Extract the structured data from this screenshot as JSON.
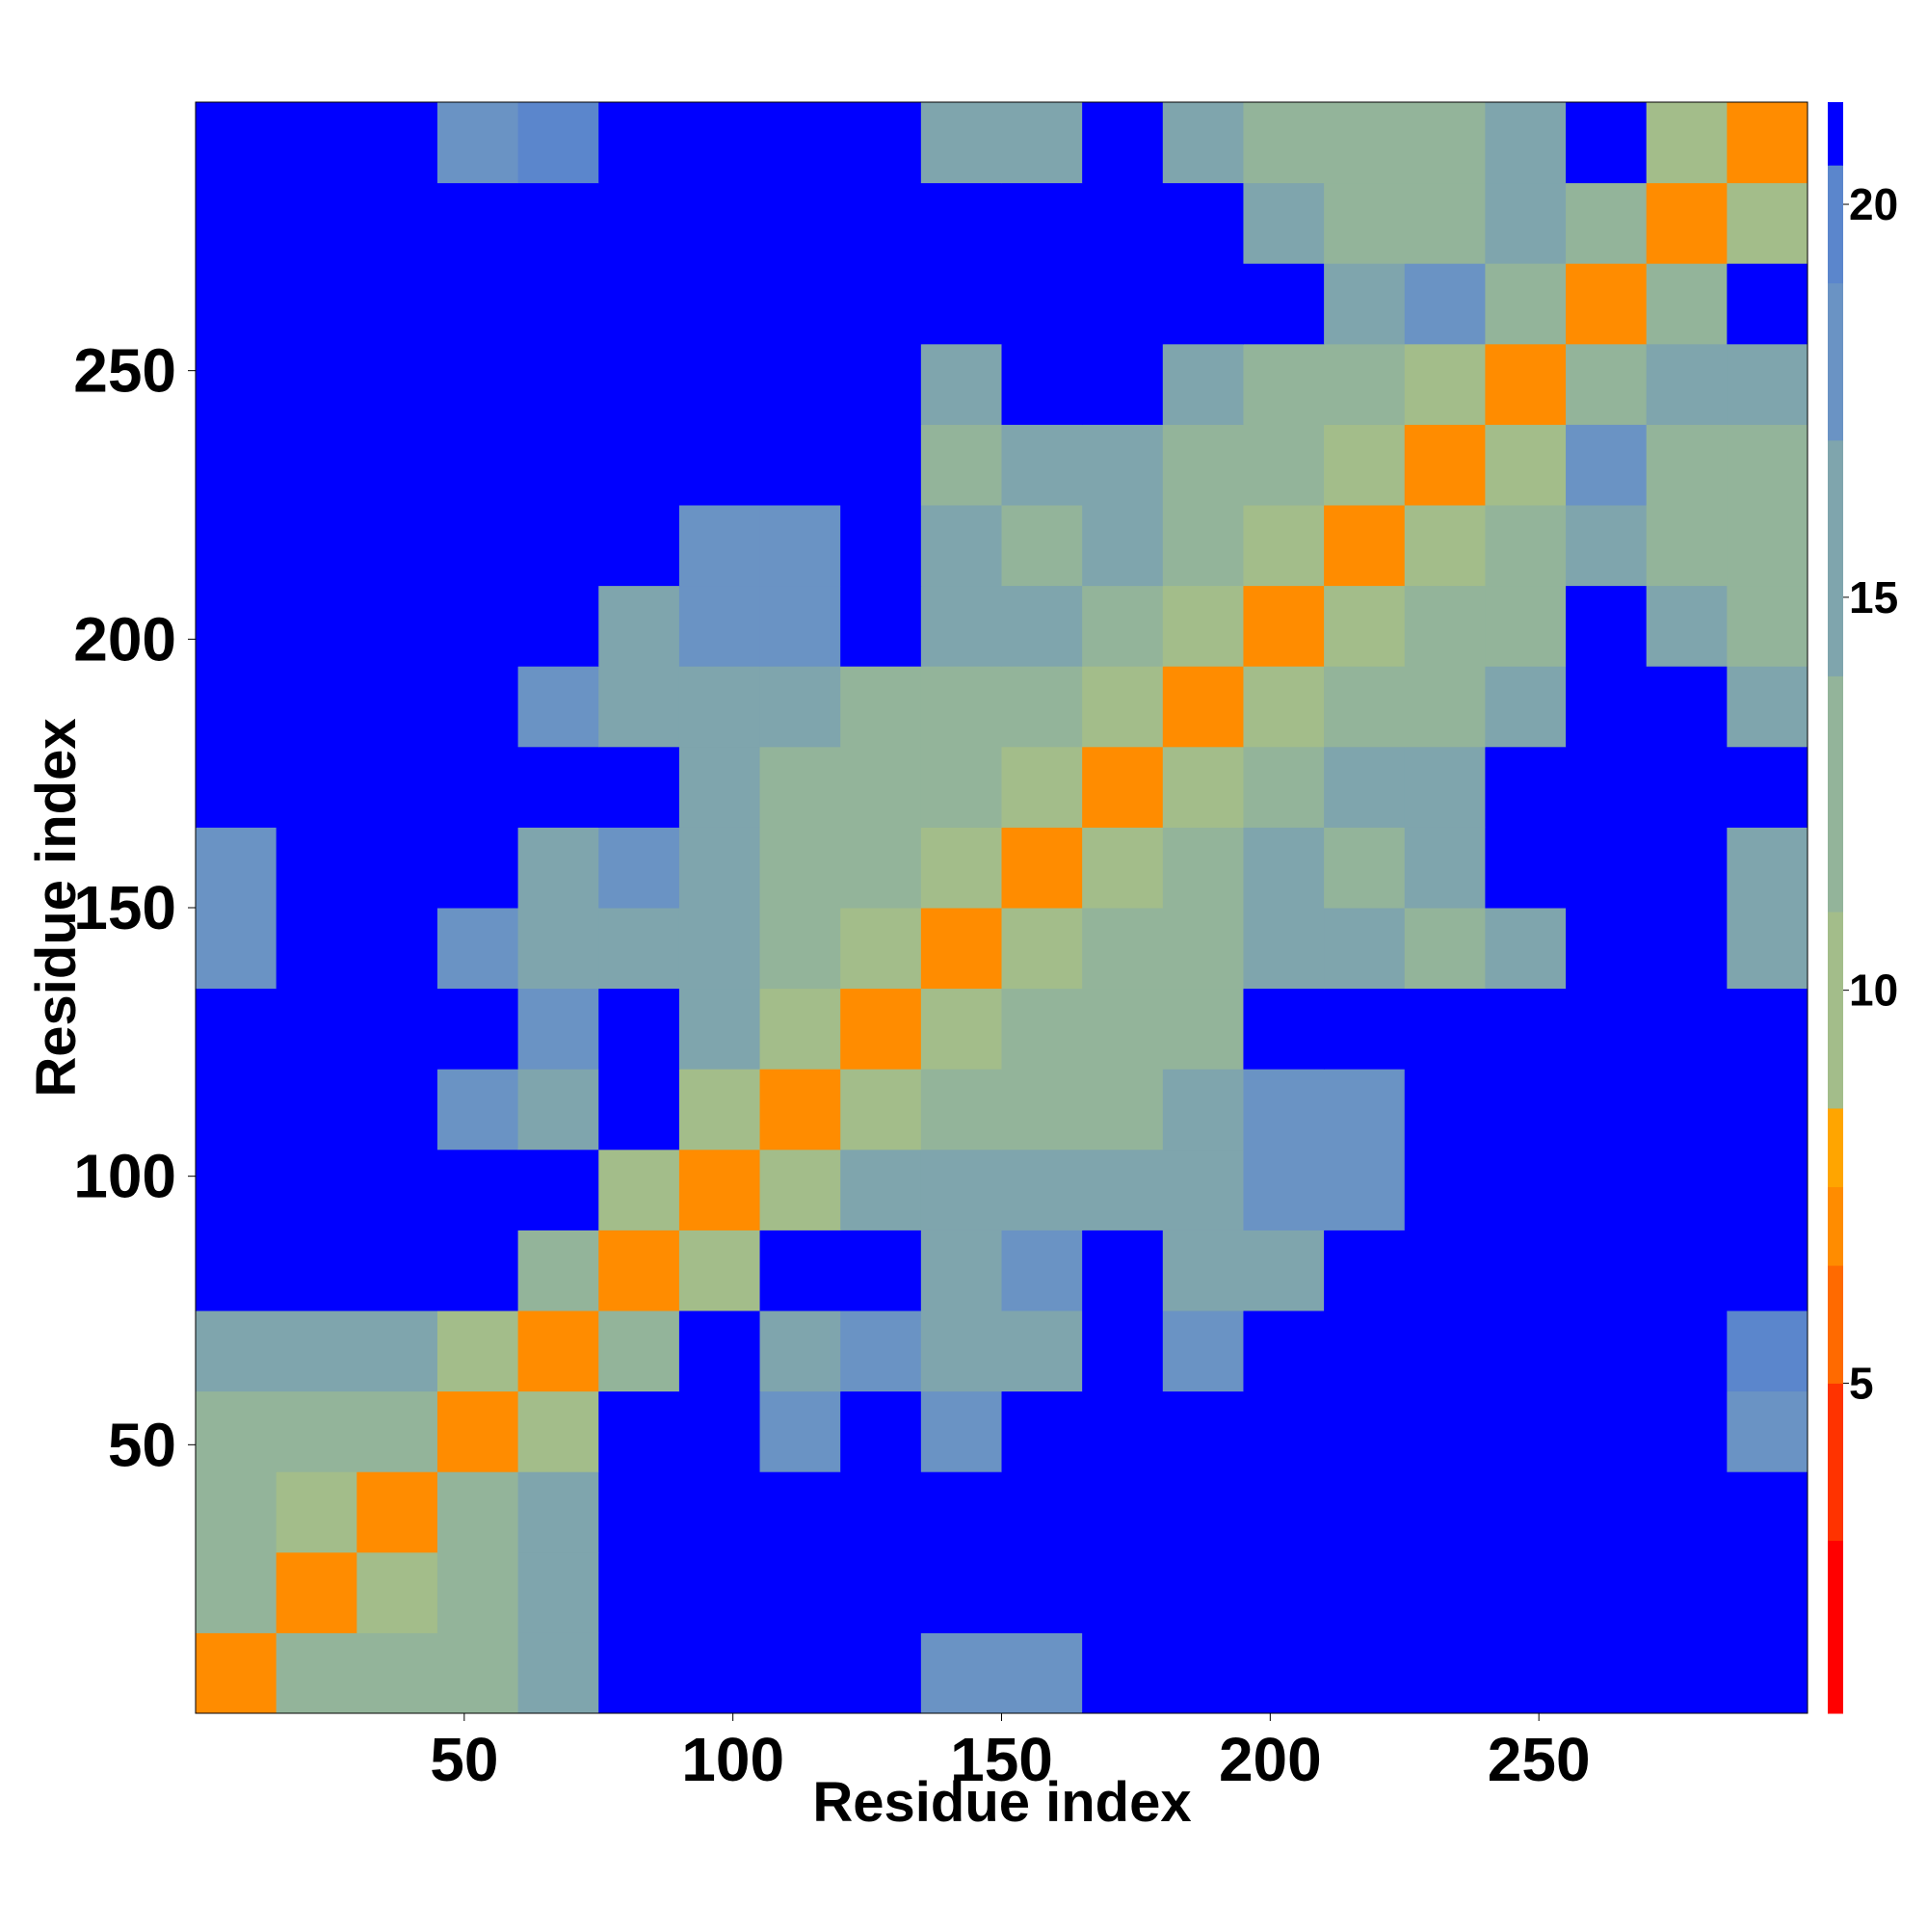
{
  "chart_data": {
    "type": "heatmap",
    "xlabel": "Residue index",
    "ylabel": "Residue index",
    "xlim": [
      0,
      300
    ],
    "ylim": [
      0,
      300
    ],
    "xticks": [
      50,
      100,
      150,
      200,
      250
    ],
    "yticks": [
      50,
      100,
      150,
      200,
      250
    ],
    "xbins": [
      0,
      15,
      30,
      45,
      60,
      75,
      90,
      105,
      120,
      135,
      150,
      165,
      180,
      195,
      210,
      225,
      240,
      255,
      270,
      285,
      300
    ],
    "ybins": [
      0,
      15,
      30,
      45,
      60,
      75,
      90,
      105,
      120,
      135,
      150,
      165,
      180,
      195,
      210,
      225,
      240,
      255,
      270,
      285,
      300
    ],
    "z": [
      [
        7,
        12,
        11,
        12,
        15,
        21,
        21,
        21,
        21,
        17,
        18,
        21,
        21,
        21,
        21,
        21,
        21,
        21,
        21,
        21
      ],
      [
        12,
        7,
        10,
        13,
        15,
        21,
        21,
        21,
        21,
        21,
        21,
        21,
        21,
        21,
        21,
        21,
        21,
        21,
        21,
        21
      ],
      [
        11,
        10,
        7,
        11,
        14,
        21,
        21,
        21,
        21,
        21,
        21,
        21,
        21,
        21,
        21,
        21,
        21,
        21,
        21,
        21
      ],
      [
        12,
        13,
        11,
        7,
        10,
        21,
        21,
        17,
        21,
        17,
        21,
        21,
        21,
        21,
        21,
        21,
        21,
        21,
        21,
        18
      ],
      [
        15,
        15,
        14,
        10,
        7,
        11,
        21,
        15,
        17,
        14,
        14,
        21,
        17,
        21,
        21,
        21,
        21,
        21,
        21,
        19
      ],
      [
        21,
        21,
        21,
        21,
        11,
        7,
        10,
        21,
        21,
        15,
        17,
        21,
        14,
        16,
        21,
        21,
        21,
        21,
        21,
        21
      ],
      [
        21,
        21,
        21,
        21,
        21,
        10,
        7,
        10,
        14,
        15,
        14,
        16,
        16,
        17,
        17,
        21,
        21,
        21,
        21,
        21
      ],
      [
        21,
        21,
        21,
        17,
        15,
        21,
        10,
        7,
        10,
        13,
        13,
        13,
        15,
        17,
        17,
        21,
        21,
        21,
        21,
        21
      ],
      [
        21,
        21,
        21,
        21,
        17,
        21,
        14,
        10,
        7,
        10,
        12,
        12,
        13,
        21,
        21,
        21,
        21,
        21,
        21,
        21
      ],
      [
        17,
        21,
        21,
        17,
        14,
        15,
        15,
        13,
        10,
        7,
        10,
        11,
        12,
        15,
        14,
        13,
        15,
        21,
        21,
        14
      ],
      [
        18,
        21,
        21,
        21,
        14,
        17,
        14,
        13,
        12,
        10,
        7,
        10,
        11,
        14,
        13,
        14,
        21,
        21,
        21,
        16
      ],
      [
        21,
        21,
        21,
        21,
        21,
        21,
        16,
        13,
        12,
        11,
        10,
        7,
        10,
        12,
        14,
        16,
        21,
        21,
        21,
        21
      ],
      [
        21,
        21,
        21,
        21,
        17,
        14,
        16,
        15,
        13,
        12,
        11,
        10,
        7,
        10,
        11,
        12,
        15,
        21,
        21,
        14
      ],
      [
        21,
        21,
        21,
        21,
        21,
        16,
        17,
        17,
        21,
        15,
        14,
        12,
        10,
        7,
        10,
        11,
        13,
        21,
        15,
        13
      ],
      [
        21,
        21,
        21,
        21,
        21,
        21,
        17,
        17,
        21,
        14,
        13,
        14,
        11,
        10,
        7,
        10,
        12,
        16,
        12,
        11
      ],
      [
        21,
        21,
        21,
        21,
        21,
        21,
        21,
        21,
        21,
        13,
        14,
        16,
        12,
        11,
        10,
        7,
        10,
        17,
        13,
        12
      ],
      [
        21,
        21,
        21,
        21,
        21,
        21,
        21,
        21,
        21,
        15,
        21,
        21,
        15,
        13,
        12,
        10,
        7,
        11,
        14,
        14
      ],
      [
        21,
        21,
        21,
        21,
        21,
        21,
        21,
        21,
        21,
        21,
        21,
        21,
        21,
        21,
        16,
        17,
        11,
        7,
        11,
        21
      ],
      [
        21,
        21,
        21,
        21,
        21,
        21,
        21,
        21,
        21,
        21,
        21,
        21,
        21,
        15,
        12,
        13,
        14,
        11,
        7,
        10
      ],
      [
        21,
        21,
        21,
        18,
        19,
        21,
        21,
        21,
        21,
        14,
        16,
        21,
        14,
        13,
        11,
        12,
        14,
        21,
        10,
        7
      ]
    ],
    "clim": [
      0.8,
      21.3
    ],
    "cticks": [
      5,
      10,
      15,
      20
    ],
    "colorscale": [
      [
        0.8,
        "#ff0000"
      ],
      [
        3,
        "#ff3300"
      ],
      [
        5,
        "#ff6a00"
      ],
      [
        6.5,
        "#ff8c00"
      ],
      [
        7.5,
        "#ffa500"
      ],
      [
        8.5,
        "#a3bd8a"
      ],
      [
        11,
        "#93b49a"
      ],
      [
        14,
        "#7fa5ad"
      ],
      [
        17,
        "#6a93c4"
      ],
      [
        19,
        "#5b86cc"
      ],
      [
        20.5,
        "#0000ff"
      ]
    ]
  }
}
